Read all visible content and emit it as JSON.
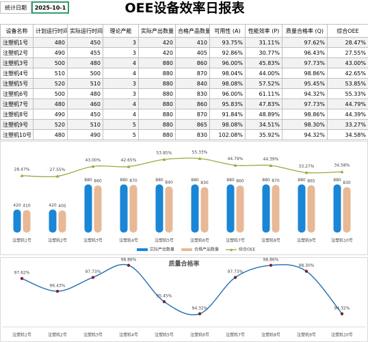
{
  "header": {
    "title": "OEE设备效率日报表",
    "date_label": "统计日期",
    "date": "2025-10-1"
  },
  "table": {
    "columns": [
      "设备名称",
      "计划运行时间",
      "实际运行时间",
      "理论产能",
      "实际产出数量",
      "合格产品数量",
      "可用性 (A)",
      "性能效率 (P)",
      "质量合格率 (Q)",
      "综合OEE"
    ],
    "rows": [
      [
        "注塑机1号",
        480,
        450,
        3,
        420,
        410,
        "93.75%",
        "31.11%",
        "97.62%",
        "28.47%"
      ],
      [
        "注塑机2号",
        490,
        455,
        3,
        420,
        405,
        "92.86%",
        "30.77%",
        "96.43%",
        "27.55%"
      ],
      [
        "注塑机3号",
        500,
        480,
        4,
        880,
        860,
        "96.00%",
        "45.83%",
        "97.73%",
        "43.00%"
      ],
      [
        "注塑机4号",
        510,
        500,
        4,
        880,
        870,
        "98.04%",
        "44.00%",
        "98.86%",
        "42.65%"
      ],
      [
        "注塑机5号",
        520,
        510,
        3,
        880,
        840,
        "98.08%",
        "57.52%",
        "95.45%",
        "53.85%"
      ],
      [
        "注塑机6号",
        500,
        480,
        3,
        880,
        830,
        "96.00%",
        "61.11%",
        "94.32%",
        "55.33%"
      ],
      [
        "注塑机7号",
        480,
        460,
        4,
        880,
        860,
        "95.83%",
        "47.83%",
        "97.73%",
        "44.79%"
      ],
      [
        "注塑机8号",
        490,
        450,
        4,
        880,
        870,
        "91.84%",
        "48.89%",
        "98.86%",
        "44.39%"
      ],
      [
        "注塑机9号",
        520,
        510,
        5,
        880,
        865,
        "98.08%",
        "34.51%",
        "98.30%",
        "33.27%"
      ],
      [
        "注塑机10号",
        480,
        490,
        5,
        880,
        830,
        "102.08%",
        "35.92%",
        "94.32%",
        "34.58%"
      ]
    ]
  },
  "charts": [
    {
      "type": "bar",
      "legend": "bottom",
      "categories": [
        "注塑机1号",
        "注塑机2号",
        "注塑机3号",
        "注塑机4号",
        "注塑机5号",
        "注塑机6号",
        "注塑机7号",
        "注塑机8号",
        "注塑机9号",
        "注塑机10号"
      ],
      "ylim": [
        0,
        1500
      ],
      "y2lim": [
        -61,
        68
      ],
      "series": [
        {
          "name": "实际产出数量",
          "color": "#1a86d6",
          "values": [
            420,
            420,
            880,
            880,
            880,
            880,
            880,
            880,
            880,
            880
          ]
        },
        {
          "name": "合格产品数量",
          "color": "#e8b996",
          "values": [
            410,
            405,
            860,
            870,
            840,
            830,
            860,
            870,
            865,
            830
          ]
        },
        {
          "name": "综合OEE",
          "type": "line",
          "axis": "y2",
          "color": "#8fae3e",
          "values": [
            28.47,
            27.55,
            43.0,
            42.65,
            53.85,
            55.33,
            44.79,
            44.39,
            33.27,
            34.58
          ],
          "value_labels": [
            "28.47%",
            "27.55%",
            "43.00%",
            "42.65%",
            "53.85%",
            "55.33%",
            "44.79%",
            "44.39%",
            "33.27%",
            "34.58%"
          ]
        }
      ]
    },
    {
      "type": "line",
      "title": "质量合格率",
      "categories": [
        "注塑机1号",
        "注塑机2号",
        "注塑机3号",
        "注塑机4号",
        "注塑机5号",
        "注塑机6号",
        "注塑机7号",
        "注塑机8号",
        "注塑机9号",
        "注塑机10号"
      ],
      "ylim": [
        93.6,
        99.3
      ],
      "color": "#2e75b6",
      "marker_color": "#7a2035",
      "values": [
        97.62,
        96.43,
        97.73,
        98.86,
        95.45,
        94.32,
        97.73,
        98.86,
        98.3,
        94.32
      ],
      "value_labels": [
        "97.62%",
        "96.43%",
        "97.73%",
        "98.86%",
        "95.45%",
        "94.32%",
        "97.73%",
        "98.86%",
        "98.30%",
        "94.32%"
      ]
    }
  ]
}
